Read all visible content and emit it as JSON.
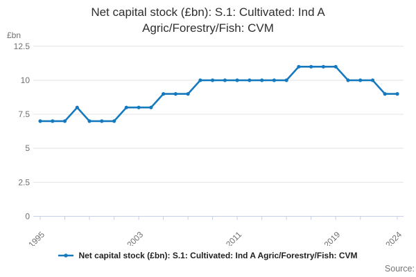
{
  "title": {
    "line1": "Net capital stock (£bn): S.1: Cultivated: Ind A",
    "line2": "Agric/Forestry/Fish: CVM"
  },
  "y_axis_unit_label": "£bn",
  "legend": {
    "label": "Net capital stock (£bn): S.1: Cultivated: Ind A Agric/Forestry/Fish: CVM"
  },
  "source_label": "Source:",
  "colors": {
    "line": "#1579bf",
    "marker": "#1579bf",
    "grid": "#e3e3e3",
    "axis": "#c3cde4",
    "tick_text": "#6f6f6f",
    "title_text": "#2e2e2e",
    "legend_text": "#1f1f1f",
    "source_text": "#757575"
  },
  "chart_data": {
    "type": "line",
    "title": "Net capital stock (£bn): S.1: Cultivated: Ind A Agric/Forestry/Fish: CVM",
    "ylabel": "£bn",
    "xlabel": "",
    "x": [
      1995,
      1996,
      1997,
      1998,
      1999,
      2000,
      2001,
      2002,
      2003,
      2004,
      2005,
      2006,
      2007,
      2008,
      2009,
      2010,
      2011,
      2012,
      2013,
      2014,
      2015,
      2016,
      2017,
      2018,
      2019,
      2020,
      2021,
      2022,
      2023,
      2024
    ],
    "series": [
      {
        "name": "Net capital stock (£bn): S.1: Cultivated: Ind A Agric/Forestry/Fish: CVM",
        "values": [
          7,
          7,
          7,
          8,
          7,
          7,
          7,
          8,
          8,
          8,
          9,
          9,
          9,
          10,
          10,
          10,
          10,
          10,
          10,
          10,
          10,
          11,
          11,
          11,
          11,
          10,
          10,
          10,
          9,
          9
        ]
      }
    ],
    "ylim": [
      0,
      12.5
    ],
    "yticks": [
      0,
      2.5,
      5,
      7.5,
      10,
      12.5
    ],
    "xticks_minor": [
      1995,
      1997,
      1999,
      2001,
      2003,
      2005,
      2007,
      2009,
      2011,
      2013,
      2015,
      2017,
      2019,
      2021,
      2024
    ],
    "xticks_labeled": [
      1995,
      2003,
      2011,
      2019,
      2024
    ],
    "grid": "horizontal-only",
    "legend_position": "bottom",
    "marker": "circle"
  }
}
